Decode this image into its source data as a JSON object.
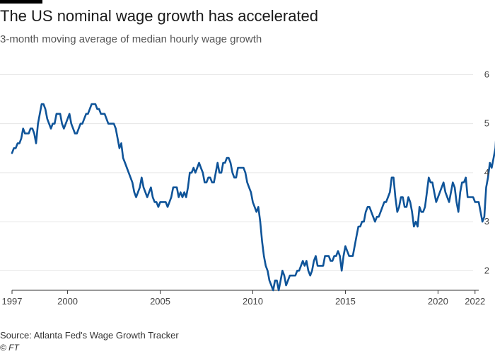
{
  "header": {
    "title": "The US nominal wage growth has accelerated",
    "subtitle": "3-month moving average of median hourly wage growth"
  },
  "footer": {
    "source": "Source: Atlanta Fed's Wage Growth Tracker",
    "credit": "© FT"
  },
  "colors": {
    "line": "#0f5499",
    "grid": "#e6e6e6",
    "axis": "#333333",
    "title_bar": "#000000"
  },
  "chart_data": {
    "type": "line",
    "title": "The US nominal wage growth has accelerated",
    "subtitle": "3-month moving average of median hourly wage growth",
    "xlabel": "",
    "ylabel": "",
    "xlim": [
      1997,
      2022.2
    ],
    "ylim": [
      1.6,
      6.05
    ],
    "x_ticks": [
      1997,
      2000,
      2005,
      2010,
      2015,
      2020,
      2022
    ],
    "x_tick_labels": [
      "1997",
      "2000",
      "2005",
      "2010",
      "2015",
      "2020",
      "2022"
    ],
    "y_ticks": [
      2,
      3,
      4,
      5,
      6
    ],
    "y_tick_labels": [
      "2",
      "3",
      "4",
      "5",
      "6"
    ],
    "y_axis_position": "right",
    "grid": "horizontal",
    "series": [
      {
        "points": [
          [
            1997.0,
            4.4
          ],
          [
            1997.1,
            4.5
          ],
          [
            1997.2,
            4.5
          ],
          [
            1997.3,
            4.6
          ],
          [
            1997.4,
            4.6
          ],
          [
            1997.5,
            4.7
          ],
          [
            1997.6,
            4.9
          ],
          [
            1997.7,
            4.8
          ],
          [
            1997.8,
            4.8
          ],
          [
            1997.9,
            4.8
          ],
          [
            1998.0,
            4.9
          ],
          [
            1998.1,
            4.9
          ],
          [
            1998.2,
            4.8
          ],
          [
            1998.3,
            4.6
          ],
          [
            1998.4,
            5.0
          ],
          [
            1998.5,
            5.2
          ],
          [
            1998.6,
            5.4
          ],
          [
            1998.7,
            5.4
          ],
          [
            1998.8,
            5.3
          ],
          [
            1998.9,
            5.1
          ],
          [
            1999.0,
            5.0
          ],
          [
            1999.1,
            4.9
          ],
          [
            1999.2,
            5.0
          ],
          [
            1999.3,
            5.0
          ],
          [
            1999.4,
            5.2
          ],
          [
            1999.5,
            5.2
          ],
          [
            1999.6,
            5.2
          ],
          [
            1999.7,
            5.0
          ],
          [
            1999.8,
            4.9
          ],
          [
            1999.9,
            5.0
          ],
          [
            2000.0,
            5.1
          ],
          [
            2000.1,
            5.2
          ],
          [
            2000.2,
            5.0
          ],
          [
            2000.3,
            4.9
          ],
          [
            2000.4,
            4.8
          ],
          [
            2000.5,
            4.8
          ],
          [
            2000.6,
            4.9
          ],
          [
            2000.7,
            5.0
          ],
          [
            2000.8,
            5.0
          ],
          [
            2000.9,
            5.1
          ],
          [
            2001.0,
            5.2
          ],
          [
            2001.1,
            5.2
          ],
          [
            2001.2,
            5.3
          ],
          [
            2001.3,
            5.4
          ],
          [
            2001.4,
            5.4
          ],
          [
            2001.5,
            5.4
          ],
          [
            2001.6,
            5.3
          ],
          [
            2001.7,
            5.3
          ],
          [
            2001.8,
            5.2
          ],
          [
            2001.9,
            5.2
          ],
          [
            2002.0,
            5.2
          ],
          [
            2002.1,
            5.1
          ],
          [
            2002.2,
            5.0
          ],
          [
            2002.3,
            5.0
          ],
          [
            2002.4,
            5.0
          ],
          [
            2002.5,
            5.0
          ],
          [
            2002.6,
            4.9
          ],
          [
            2002.7,
            4.7
          ],
          [
            2002.8,
            4.5
          ],
          [
            2002.9,
            4.6
          ],
          [
            2003.0,
            4.3
          ],
          [
            2003.1,
            4.2
          ],
          [
            2003.2,
            4.1
          ],
          [
            2003.3,
            4.0
          ],
          [
            2003.4,
            3.9
          ],
          [
            2003.5,
            3.8
          ],
          [
            2003.6,
            3.6
          ],
          [
            2003.7,
            3.5
          ],
          [
            2003.8,
            3.6
          ],
          [
            2003.9,
            3.7
          ],
          [
            2004.0,
            3.9
          ],
          [
            2004.1,
            3.7
          ],
          [
            2004.2,
            3.6
          ],
          [
            2004.3,
            3.5
          ],
          [
            2004.4,
            3.6
          ],
          [
            2004.5,
            3.7
          ],
          [
            2004.6,
            3.5
          ],
          [
            2004.7,
            3.4
          ],
          [
            2004.8,
            3.4
          ],
          [
            2004.9,
            3.3
          ],
          [
            2005.0,
            3.4
          ],
          [
            2005.1,
            3.4
          ],
          [
            2005.2,
            3.4
          ],
          [
            2005.3,
            3.4
          ],
          [
            2005.4,
            3.3
          ],
          [
            2005.5,
            3.4
          ],
          [
            2005.6,
            3.5
          ],
          [
            2005.7,
            3.7
          ],
          [
            2005.8,
            3.7
          ],
          [
            2005.9,
            3.7
          ],
          [
            2006.0,
            3.5
          ],
          [
            2006.1,
            3.6
          ],
          [
            2006.2,
            3.5
          ],
          [
            2006.3,
            3.6
          ],
          [
            2006.4,
            3.5
          ],
          [
            2006.5,
            3.7
          ],
          [
            2006.6,
            4.0
          ],
          [
            2006.7,
            4.0
          ],
          [
            2006.8,
            4.1
          ],
          [
            2006.9,
            4.0
          ],
          [
            2007.0,
            4.1
          ],
          [
            2007.1,
            4.2
          ],
          [
            2007.2,
            4.1
          ],
          [
            2007.3,
            4.0
          ],
          [
            2007.4,
            3.8
          ],
          [
            2007.5,
            3.8
          ],
          [
            2007.6,
            3.9
          ],
          [
            2007.7,
            3.9
          ],
          [
            2007.8,
            3.8
          ],
          [
            2007.9,
            3.8
          ],
          [
            2008.0,
            4.0
          ],
          [
            2008.1,
            4.2
          ],
          [
            2008.2,
            4.0
          ],
          [
            2008.3,
            4.0
          ],
          [
            2008.4,
            4.2
          ],
          [
            2008.5,
            4.2
          ],
          [
            2008.6,
            4.3
          ],
          [
            2008.7,
            4.3
          ],
          [
            2008.8,
            4.2
          ],
          [
            2008.9,
            4.0
          ],
          [
            2009.0,
            3.9
          ],
          [
            2009.1,
            3.9
          ],
          [
            2009.2,
            4.1
          ],
          [
            2009.3,
            4.1
          ],
          [
            2009.4,
            4.1
          ],
          [
            2009.5,
            4.1
          ],
          [
            2009.6,
            4.0
          ],
          [
            2009.7,
            3.8
          ],
          [
            2009.8,
            3.7
          ],
          [
            2009.9,
            3.6
          ],
          [
            2010.0,
            3.4
          ],
          [
            2010.1,
            3.3
          ],
          [
            2010.2,
            3.2
          ],
          [
            2010.3,
            3.3
          ],
          [
            2010.4,
            3.0
          ],
          [
            2010.5,
            2.6
          ],
          [
            2010.6,
            2.3
          ],
          [
            2010.7,
            2.1
          ],
          [
            2010.8,
            2.0
          ],
          [
            2010.9,
            1.8
          ],
          [
            2011.0,
            1.7
          ],
          [
            2011.1,
            1.6
          ],
          [
            2011.2,
            1.8
          ],
          [
            2011.3,
            1.8
          ],
          [
            2011.4,
            1.6
          ],
          [
            2011.5,
            1.8
          ],
          [
            2011.6,
            2.0
          ],
          [
            2011.7,
            1.9
          ],
          [
            2011.8,
            1.7
          ],
          [
            2011.9,
            1.8
          ],
          [
            2012.0,
            1.9
          ],
          [
            2012.1,
            1.9
          ],
          [
            2012.2,
            1.9
          ],
          [
            2012.3,
            1.9
          ],
          [
            2012.4,
            2.0
          ],
          [
            2012.5,
            2.0
          ],
          [
            2012.6,
            2.1
          ],
          [
            2012.7,
            2.2
          ],
          [
            2012.8,
            2.1
          ],
          [
            2012.9,
            2.2
          ],
          [
            2013.0,
            2.0
          ],
          [
            2013.1,
            1.9
          ],
          [
            2013.2,
            2.0
          ],
          [
            2013.3,
            2.2
          ],
          [
            2013.4,
            2.3
          ],
          [
            2013.5,
            2.1
          ],
          [
            2013.6,
            2.1
          ],
          [
            2013.7,
            2.1
          ],
          [
            2013.8,
            2.1
          ],
          [
            2013.9,
            2.3
          ],
          [
            2014.0,
            2.3
          ],
          [
            2014.1,
            2.3
          ],
          [
            2014.2,
            2.2
          ],
          [
            2014.3,
            2.2
          ],
          [
            2014.4,
            2.3
          ],
          [
            2014.5,
            2.3
          ],
          [
            2014.6,
            2.4
          ],
          [
            2014.7,
            2.3
          ],
          [
            2014.8,
            2.0
          ],
          [
            2014.9,
            2.3
          ],
          [
            2015.0,
            2.5
          ],
          [
            2015.1,
            2.4
          ],
          [
            2015.2,
            2.3
          ],
          [
            2015.3,
            2.3
          ],
          [
            2015.4,
            2.3
          ],
          [
            2015.5,
            2.5
          ],
          [
            2015.6,
            2.7
          ],
          [
            2015.7,
            2.9
          ],
          [
            2015.8,
            2.9
          ],
          [
            2015.9,
            3.0
          ],
          [
            2016.0,
            3.0
          ],
          [
            2016.1,
            3.2
          ],
          [
            2016.2,
            3.3
          ],
          [
            2016.3,
            3.3
          ],
          [
            2016.4,
            3.2
          ],
          [
            2016.5,
            3.1
          ],
          [
            2016.6,
            3.0
          ],
          [
            2016.7,
            3.1
          ],
          [
            2016.8,
            3.1
          ],
          [
            2016.9,
            3.2
          ],
          [
            2017.0,
            3.3
          ],
          [
            2017.1,
            3.4
          ],
          [
            2017.2,
            3.4
          ],
          [
            2017.3,
            3.5
          ],
          [
            2017.4,
            3.6
          ],
          [
            2017.5,
            3.9
          ],
          [
            2017.6,
            3.9
          ],
          [
            2017.7,
            3.5
          ],
          [
            2017.8,
            3.2
          ],
          [
            2017.9,
            3.3
          ],
          [
            2018.0,
            3.5
          ],
          [
            2018.1,
            3.5
          ],
          [
            2018.2,
            3.3
          ],
          [
            2018.3,
            3.3
          ],
          [
            2018.4,
            3.5
          ],
          [
            2018.5,
            3.4
          ],
          [
            2018.6,
            3.2
          ],
          [
            2018.7,
            2.9
          ],
          [
            2018.8,
            3.0
          ],
          [
            2018.9,
            2.9
          ],
          [
            2019.0,
            3.3
          ],
          [
            2019.1,
            3.2
          ],
          [
            2019.2,
            3.2
          ],
          [
            2019.3,
            3.3
          ],
          [
            2019.4,
            3.6
          ],
          [
            2019.5,
            3.9
          ],
          [
            2019.6,
            3.8
          ],
          [
            2019.7,
            3.8
          ],
          [
            2019.8,
            3.6
          ],
          [
            2019.9,
            3.4
          ],
          [
            2020.0,
            3.5
          ],
          [
            2020.1,
            3.6
          ],
          [
            2020.2,
            3.7
          ],
          [
            2020.3,
            3.8
          ],
          [
            2020.4,
            3.6
          ],
          [
            2020.5,
            3.5
          ],
          [
            2020.6,
            3.4
          ],
          [
            2020.7,
            3.6
          ],
          [
            2020.8,
            3.8
          ],
          [
            2020.9,
            3.7
          ],
          [
            2021.0,
            3.4
          ],
          [
            2021.1,
            3.2
          ],
          [
            2021.2,
            3.6
          ],
          [
            2021.3,
            3.8
          ],
          [
            2021.4,
            3.8
          ],
          [
            2021.5,
            3.9
          ],
          [
            2021.6,
            3.5
          ],
          [
            2021.7,
            3.5
          ],
          [
            2021.8,
            3.5
          ],
          [
            2021.9,
            3.5
          ],
          [
            2022.0,
            3.4
          ],
          [
            2022.1,
            3.4
          ],
          [
            2022.2,
            3.4
          ],
          [
            2022.3,
            3.2
          ],
          [
            2022.4,
            3.0
          ],
          [
            2022.5,
            3.1
          ],
          [
            2022.6,
            3.7
          ],
          [
            2022.7,
            3.9
          ],
          [
            2022.8,
            4.2
          ],
          [
            2022.9,
            4.1
          ],
          [
            2023.0,
            4.3
          ],
          [
            2023.1,
            4.5
          ],
          [
            2023.2,
            5.1
          ],
          [
            2023.3,
            5.7
          ],
          [
            2023.4,
            5.9
          ],
          [
            2023.5,
            6.0
          ]
        ]
      }
    ]
  }
}
